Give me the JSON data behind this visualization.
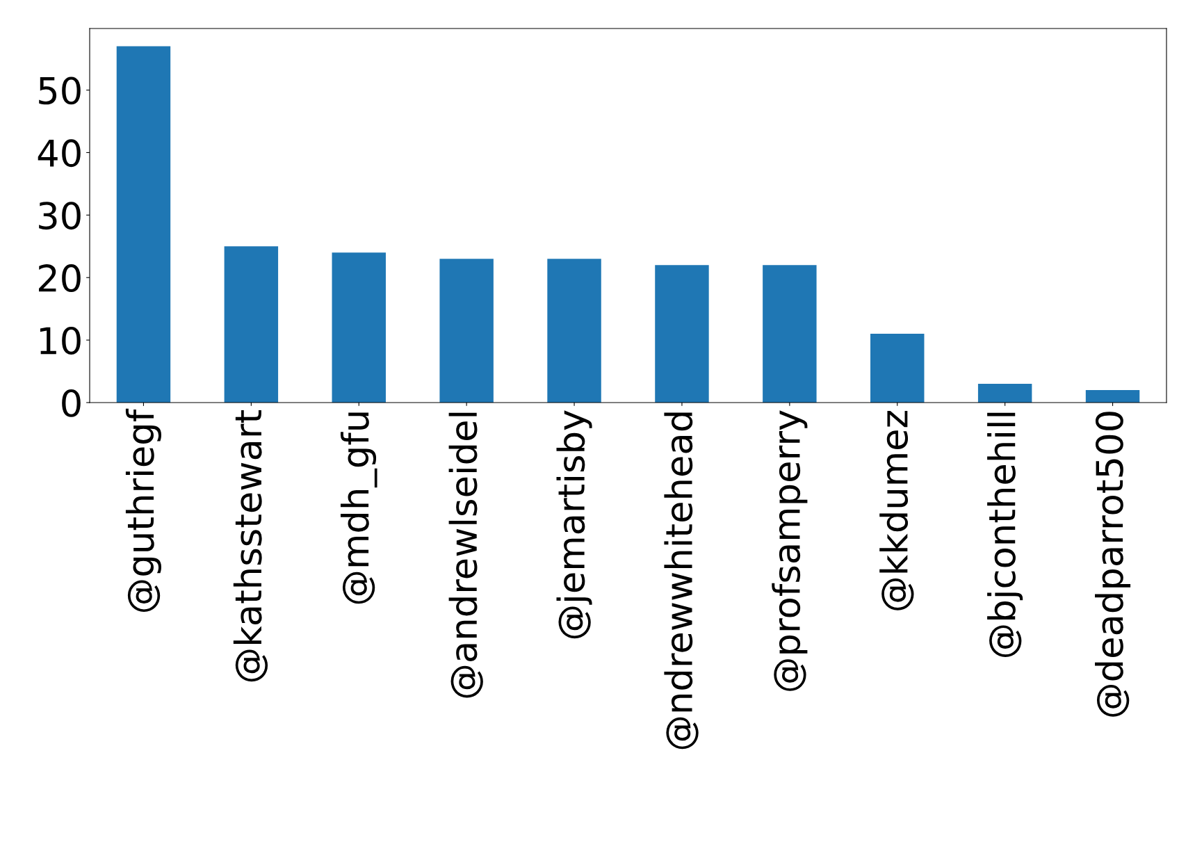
{
  "chart_data": {
    "type": "bar",
    "categories": [
      "@guthriegf",
      "@kathsstewart",
      "@mdh_gfu",
      "@andrewlseidel",
      "@jemartisby",
      "@ndrewwhitehead",
      "@profsamperry",
      "@kkdumez",
      "@bjconthehill",
      "@deadparrot500"
    ],
    "values": [
      57,
      25,
      24,
      23,
      23,
      22,
      22,
      11,
      3,
      2
    ],
    "color": "#1f77b4",
    "ylim": [
      0,
      59.85
    ],
    "yticks": [
      0,
      10,
      20,
      30,
      40,
      50
    ],
    "grid": false,
    "legend": false
  }
}
